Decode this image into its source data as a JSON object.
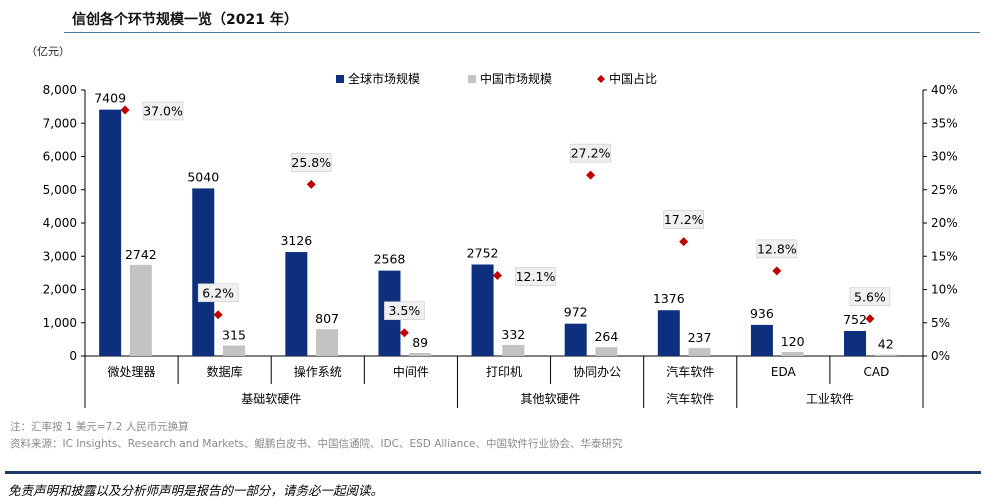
{
  "header": {
    "title": "信创各个环节规模一览（2021 年）",
    "unit_label": "（亿元）"
  },
  "chart_data": {
    "type": "bar",
    "categories": [
      "微处理器",
      "数据库",
      "操作系统",
      "中间件",
      "打印机",
      "协同办公",
      "汽车软件",
      "EDA",
      "CAD"
    ],
    "groups": [
      {
        "label": "基础软硬件",
        "categories": [
          "微处理器",
          "数据库",
          "操作系统",
          "中间件"
        ]
      },
      {
        "label": "其他软硬件",
        "categories": [
          "打印机",
          "协同办公"
        ]
      },
      {
        "label": "汽车软件",
        "categories": [
          "汽车软件"
        ]
      },
      {
        "label": "工业软件",
        "categories": [
          "EDA",
          "CAD"
        ]
      }
    ],
    "series": [
      {
        "name": "全球市场规模",
        "kind": "bar",
        "axis": "left",
        "color": "#0d2f7d",
        "values": [
          7409,
          5040,
          3126,
          2568,
          2752,
          972,
          1376,
          936,
          752
        ],
        "labels": [
          "7409",
          "5040",
          "3126",
          "2568",
          "2752",
          "972",
          "1376",
          "936",
          "752"
        ]
      },
      {
        "name": "中国市场规模",
        "kind": "bar",
        "axis": "left",
        "color": "#c3c3c3",
        "values": [
          2742,
          315,
          807,
          89,
          332,
          264,
          237,
          120,
          42
        ],
        "labels": [
          "2742",
          "315",
          "807",
          "89",
          "332",
          "264",
          "237",
          "120",
          "42"
        ]
      },
      {
        "name": "中国占比",
        "kind": "scatter",
        "axis": "right",
        "color": "#c00000",
        "values": [
          0.37,
          0.062,
          0.258,
          0.035,
          0.121,
          0.272,
          0.172,
          0.128,
          0.056
        ],
        "labels": [
          "37.0%",
          "6.2%",
          "25.8%",
          "3.5%",
          "12.1%",
          "27.2%",
          "17.2%",
          "12.8%",
          "5.6%"
        ]
      }
    ],
    "y_left": {
      "ylim": [
        0,
        8000
      ],
      "ticks": [
        "0",
        "1,000",
        "2,000",
        "3,000",
        "4,000",
        "5,000",
        "6,000",
        "7,000",
        "8,000"
      ]
    },
    "y_right": {
      "ylim": [
        0,
        0.4
      ],
      "ticks": [
        "0%",
        "5%",
        "10%",
        "15%",
        "20%",
        "25%",
        "30%",
        "35%",
        "40%"
      ]
    },
    "legend_position": "top"
  },
  "notes": {
    "note": "注：汇率按 1 美元=7.2 人民币元换算",
    "source": "资料来源：IC Insights、Research and Markets、鲲鹏白皮书、中国信通院、IDC、ESD Alliance、中国软件行业协会、华泰研究"
  },
  "disclaimer": "免责声明和披露以及分析师声明是报告的一部分，请务必一起阅读。"
}
